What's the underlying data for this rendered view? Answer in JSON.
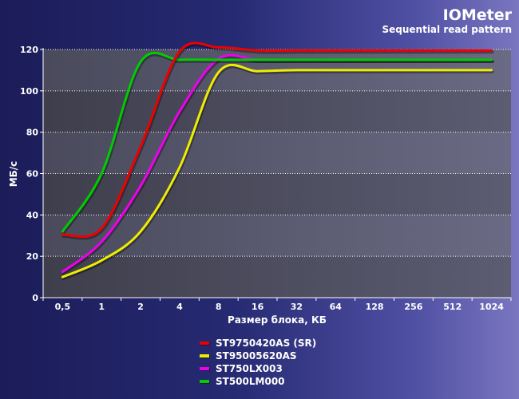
{
  "chart_data": {
    "type": "line",
    "title": "IOMeter",
    "subtitle": "Sequential read pattern",
    "xlabel": "Размер блока, КБ",
    "ylabel": "МБ/с",
    "categories": [
      "0,5",
      "1",
      "2",
      "4",
      "8",
      "16",
      "32",
      "64",
      "128",
      "256",
      "512",
      "1024"
    ],
    "ylim": [
      0,
      120
    ],
    "yticks": [
      0,
      20,
      40,
      60,
      80,
      100,
      120
    ],
    "grid": true,
    "legend_position": "bottom-center",
    "series": [
      {
        "name": "ST9750420AS (SR)",
        "color": "#ee0000",
        "values": [
          30.5,
          33.5,
          73,
          119,
          121,
          119.5,
          119.5,
          119.5,
          119.5,
          119.5,
          119.5,
          119.5
        ]
      },
      {
        "name": "ST95005620AS",
        "color": "#eeee00",
        "values": [
          10,
          18,
          32,
          63,
          109,
          109.5,
          110,
          110,
          110,
          110,
          110,
          110
        ]
      },
      {
        "name": "ST750LX003",
        "color": "#ee00ee",
        "values": [
          12.5,
          27,
          54,
          90,
          115.5,
          115,
          115,
          115,
          115,
          115,
          115,
          115
        ]
      },
      {
        "name": "ST500LM000",
        "color": "#00cc00",
        "values": [
          32,
          60,
          114,
          115,
          115,
          115,
          115,
          115,
          115,
          115,
          115,
          115
        ]
      }
    ]
  }
}
